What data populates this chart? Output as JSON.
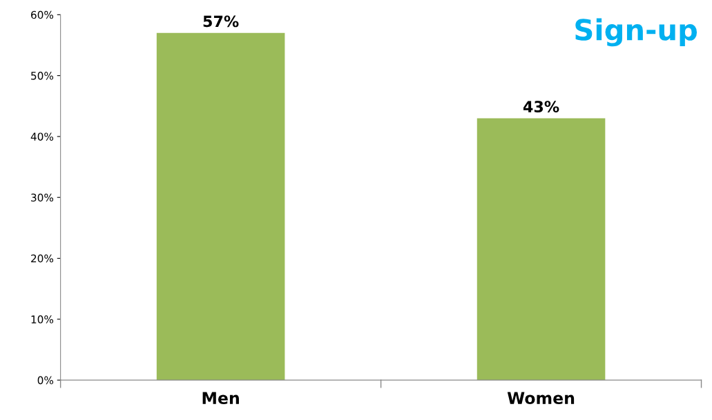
{
  "chart_data": {
    "type": "bar",
    "title": "Sign-up",
    "categories": [
      "Men",
      "Women"
    ],
    "values": [
      57,
      43
    ],
    "color": "#9bbb59",
    "value_labels": [
      "57%",
      "43%"
    ],
    "ylim": [
      0,
      60
    ],
    "yticks": [
      {
        "value": 0,
        "label": "0%"
      },
      {
        "value": 10,
        "label": "10%"
      },
      {
        "value": 20,
        "label": "20%"
      },
      {
        "value": 30,
        "label": "30%"
      },
      {
        "value": 40,
        "label": "40%"
      },
      {
        "value": 50,
        "label": "50%"
      },
      {
        "value": 60,
        "label": "60%"
      }
    ],
    "grid": false,
    "legend": false
  }
}
